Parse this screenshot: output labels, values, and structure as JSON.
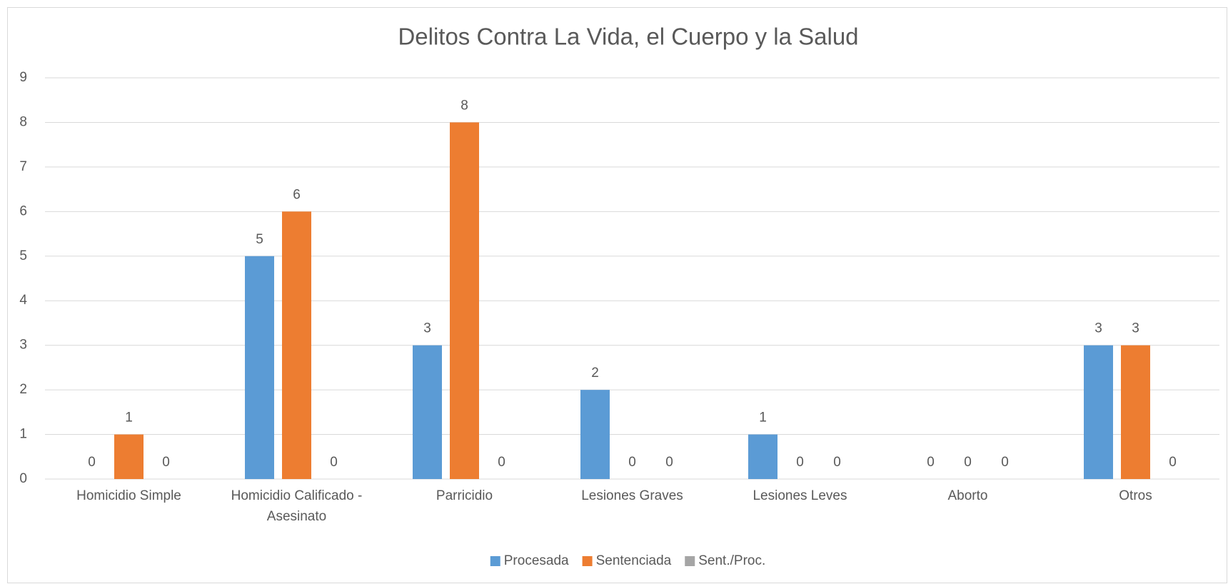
{
  "chart_data": {
    "type": "bar",
    "title": "Delitos Contra La Vida, el Cuerpo y la Salud",
    "categories": [
      "Homicidio Simple",
      "Homicidio Calificado - Asesinato",
      "Parricidio",
      "Lesiones Graves",
      "Lesiones Leves",
      "Aborto",
      "Otros"
    ],
    "series": [
      {
        "name": "Procesada",
        "color": "#5b9bd5",
        "values": [
          0,
          5,
          3,
          2,
          1,
          0,
          3
        ]
      },
      {
        "name": "Sentenciada",
        "color": "#ed7d31",
        "values": [
          1,
          6,
          8,
          0,
          0,
          0,
          3
        ]
      },
      {
        "name": "Sent./Proc.",
        "color": "#a5a5a5",
        "values": [
          0,
          0,
          0,
          0,
          0,
          0,
          0
        ]
      }
    ],
    "ylim": [
      0,
      9
    ],
    "yticks": [
      0,
      1,
      2,
      3,
      4,
      5,
      6,
      7,
      8,
      9
    ],
    "grid": true,
    "legend": "bottom"
  }
}
